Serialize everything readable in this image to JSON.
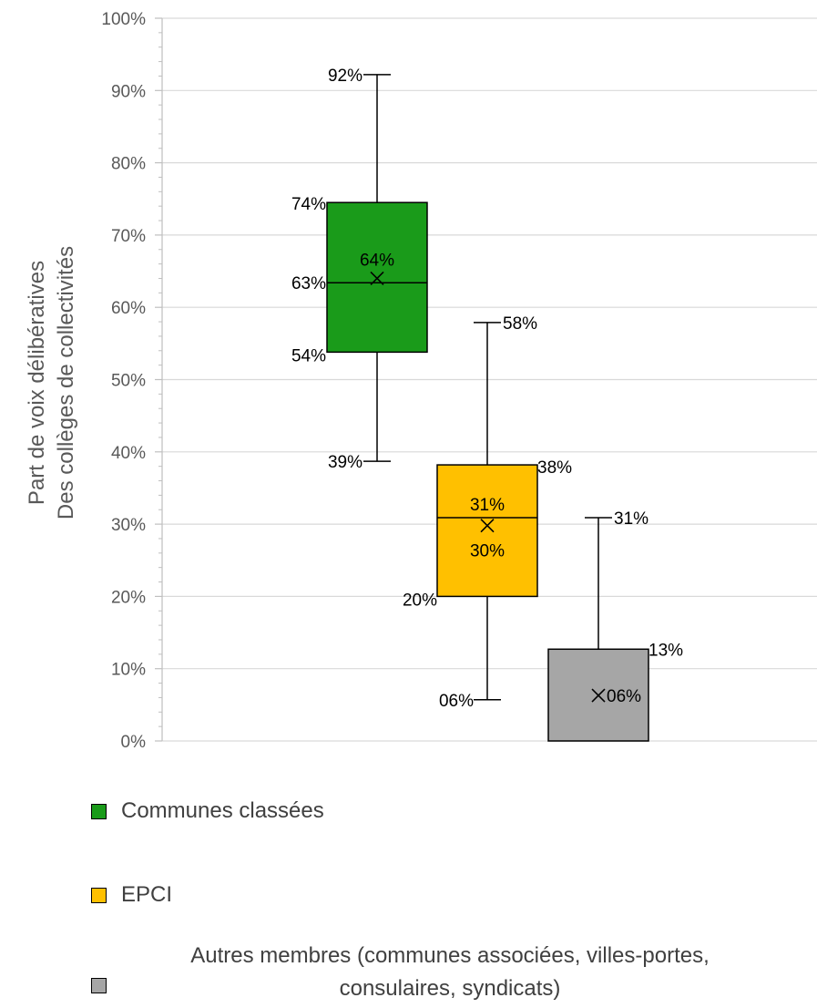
{
  "chart_data": {
    "type": "box",
    "ylabel_lines": [
      "Part de voix délibératives",
      "Des collèges de collectivités"
    ],
    "ylim": [
      0,
      100
    ],
    "y_ticks": [
      "0%",
      "10%",
      "20%",
      "30%",
      "40%",
      "50%",
      "60%",
      "70%",
      "80%",
      "90%",
      "100%"
    ],
    "y_tick_values": [
      0,
      10,
      20,
      30,
      40,
      50,
      60,
      70,
      80,
      90,
      100
    ],
    "grid": true,
    "legend_position": "bottom",
    "series": [
      {
        "name": "Communes classées",
        "color": "#1a9b1a",
        "min": 38.7,
        "q1": 53.8,
        "median": 63.4,
        "mean": 64.0,
        "q3": 74.5,
        "max": 92.2,
        "labels": {
          "min": "39%",
          "q1": "54%",
          "median": "63%",
          "mean": "64%",
          "q3": "74%",
          "max": "92%"
        }
      },
      {
        "name": "EPCI",
        "color": "#ffc000",
        "min": 5.7,
        "q1": 20.0,
        "median": 30.9,
        "mean": 29.8,
        "q3": 38.2,
        "max": 57.9,
        "labels": {
          "min": "06%",
          "q1": "20%",
          "median": "31%",
          "mean": "30%",
          "q3": "38%",
          "max": "58%"
        }
      },
      {
        "name": "Autres membres (communes associées, villes-portes, consulaires, syndicats)",
        "color": "#a6a6a6",
        "min": 0,
        "q1": 0,
        "median": 0,
        "mean": 6.3,
        "q3": 12.7,
        "max": 30.9,
        "labels": {
          "mean": "06%",
          "q3": "13%",
          "max": "31%"
        }
      }
    ]
  },
  "legend": {
    "item1": "Communes classées",
    "item2": "EPCI",
    "item3_line1": "Autres membres (communes associées, villes-portes,",
    "item3_line2": "consulaires, syndicats)"
  }
}
